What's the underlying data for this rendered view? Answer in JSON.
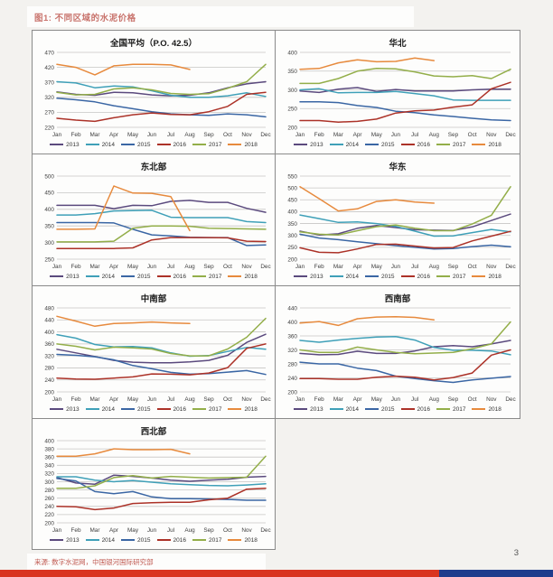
{
  "page": {
    "figure_label": "图1: 不同区域的水泥价格",
    "source_text": "来源: 数字水泥网，中国银河国际研究部",
    "page_number": "3",
    "figure_label_color": "#c9746d",
    "source_text_color": "#c05a52",
    "footer_bar": {
      "red": "#d93420",
      "blue": "#1e3c8c"
    }
  },
  "months": [
    "Jan",
    "Feb",
    "Mar",
    "Apr",
    "May",
    "Jun",
    "Jul",
    "Aug",
    "Sep",
    "Oct",
    "Nov",
    "Dec"
  ],
  "series_colors": {
    "2013": "#5b4a7e",
    "2014": "#3fa0b8",
    "2015": "#3a66a4",
    "2016": "#ac3228",
    "2017": "#93ae49",
    "2018": "#e78a3d"
  },
  "chart_data": [
    {
      "type": "line",
      "title": "全国平均（P.O. 42.5）",
      "ylim": [
        220,
        470
      ],
      "yticks": [
        220,
        270,
        320,
        370,
        420,
        470
      ],
      "series": [
        {
          "name": "2013",
          "values": [
            338,
            330,
            327,
            337,
            335,
            328,
            325,
            327,
            335,
            352,
            365,
            372
          ]
        },
        {
          "name": "2014",
          "values": [
            372,
            368,
            352,
            358,
            355,
            342,
            327,
            320,
            320,
            325,
            335,
            323
          ]
        },
        {
          "name": "2015",
          "values": [
            317,
            312,
            305,
            292,
            282,
            272,
            265,
            262,
            260,
            265,
            262,
            255
          ]
        },
        {
          "name": "2016",
          "values": [
            250,
            244,
            240,
            252,
            262,
            268,
            263,
            262,
            272,
            290,
            330,
            337
          ]
        },
        {
          "name": "2017",
          "values": [
            337,
            328,
            330,
            348,
            352,
            345,
            333,
            330,
            332,
            350,
            372,
            430
          ]
        },
        {
          "name": "2018",
          "values": [
            430,
            420,
            395,
            425,
            430,
            430,
            428,
            413
          ]
        }
      ]
    },
    {
      "type": "line",
      "title": "华北",
      "ylim": [
        200,
        400
      ],
      "yticks": [
        200,
        250,
        300,
        350,
        400
      ],
      "series": [
        {
          "name": "2013",
          "values": [
            297,
            293,
            302,
            306,
            296,
            301,
            297,
            297,
            297,
            300,
            302,
            302
          ]
        },
        {
          "name": "2014",
          "values": [
            300,
            303,
            292,
            293,
            293,
            296,
            290,
            284,
            273,
            272,
            272,
            272
          ]
        },
        {
          "name": "2015",
          "values": [
            268,
            268,
            266,
            258,
            253,
            243,
            239,
            233,
            229,
            224,
            220,
            218
          ]
        },
        {
          "name": "2016",
          "values": [
            218,
            218,
            214,
            216,
            222,
            238,
            244,
            246,
            254,
            260,
            303,
            320
          ]
        },
        {
          "name": "2017",
          "values": [
            317,
            317,
            330,
            350,
            357,
            356,
            348,
            337,
            335,
            338,
            330,
            355
          ]
        },
        {
          "name": "2018",
          "values": [
            355,
            357,
            372,
            380,
            375,
            376,
            385,
            378
          ]
        }
      ]
    },
    {
      "type": "line",
      "title": "东北部",
      "ylim": [
        250,
        500
      ],
      "yticks": [
        250,
        300,
        350,
        400,
        450,
        500
      ],
      "series": [
        {
          "name": "2013",
          "values": [
            412,
            412,
            412,
            402,
            412,
            411,
            424,
            427,
            421,
            421,
            403,
            391
          ]
        },
        {
          "name": "2014",
          "values": [
            383,
            383,
            387,
            395,
            396,
            397,
            376,
            375,
            375,
            375,
            363,
            360
          ]
        },
        {
          "name": "2015",
          "values": [
            360,
            360,
            360,
            359,
            340,
            323,
            320,
            316,
            315,
            315,
            291,
            293
          ]
        },
        {
          "name": "2016",
          "values": [
            282,
            282,
            282,
            282,
            284,
            308,
            315,
            315,
            315,
            314,
            304,
            303
          ]
        },
        {
          "name": "2017",
          "values": [
            302,
            302,
            302,
            304,
            343,
            350,
            350,
            349,
            343,
            342,
            341,
            340
          ]
        },
        {
          "name": "2018",
          "values": [
            340,
            340,
            341,
            470,
            449,
            448,
            438,
            336
          ]
        }
      ]
    },
    {
      "type": "line",
      "title": "华东",
      "ylim": [
        200,
        550
      ],
      "yticks": [
        200,
        250,
        300,
        350,
        400,
        450,
        500,
        550
      ],
      "series": [
        {
          "name": "2013",
          "values": [
            318,
            302,
            307,
            330,
            342,
            333,
            324,
            322,
            321,
            336,
            363,
            390
          ]
        },
        {
          "name": "2014",
          "values": [
            386,
            371,
            355,
            357,
            350,
            338,
            318,
            297,
            298,
            312,
            325,
            315
          ]
        },
        {
          "name": "2015",
          "values": [
            305,
            289,
            282,
            273,
            265,
            257,
            250,
            243,
            245,
            253,
            259,
            252
          ]
        },
        {
          "name": "2016",
          "values": [
            248,
            229,
            227,
            243,
            262,
            263,
            255,
            247,
            249,
            277,
            297,
            317
          ]
        },
        {
          "name": "2017",
          "values": [
            315,
            305,
            302,
            320,
            337,
            344,
            330,
            320,
            320,
            348,
            385,
            505
          ]
        },
        {
          "name": "2018",
          "values": [
            505,
            455,
            403,
            412,
            443,
            450,
            441,
            436
          ]
        }
      ]
    },
    {
      "type": "line",
      "title": "中南部",
      "ylim": [
        200,
        480
      ],
      "yticks": [
        200,
        240,
        280,
        320,
        360,
        400,
        440,
        480
      ],
      "series": [
        {
          "name": "2013",
          "values": [
            342,
            330,
            318,
            305,
            299,
            297,
            297,
            300,
            305,
            322,
            365,
            392
          ]
        },
        {
          "name": "2014",
          "values": [
            391,
            379,
            358,
            350,
            351,
            347,
            330,
            319,
            321,
            335,
            348,
            342
          ]
        },
        {
          "name": "2015",
          "values": [
            325,
            322,
            317,
            307,
            288,
            277,
            265,
            259,
            261,
            266,
            271,
            258
          ]
        },
        {
          "name": "2016",
          "values": [
            246,
            243,
            242,
            246,
            250,
            260,
            259,
            257,
            263,
            281,
            345,
            360
          ]
        },
        {
          "name": "2017",
          "values": [
            360,
            352,
            340,
            349,
            347,
            343,
            328,
            320,
            320,
            343,
            382,
            445
          ]
        },
        {
          "name": "2018",
          "values": [
            452,
            436,
            419,
            428,
            430,
            433,
            430,
            428
          ]
        }
      ]
    },
    {
      "type": "line",
      "title": "西南部",
      "ylim": [
        200,
        440
      ],
      "yticks": [
        200,
        240,
        280,
        320,
        360,
        400,
        440
      ],
      "series": [
        {
          "name": "2013",
          "values": [
            310,
            306,
            307,
            316,
            310,
            310,
            317,
            329,
            332,
            329,
            337,
            347
          ]
        },
        {
          "name": "2014",
          "values": [
            347,
            342,
            348,
            353,
            357,
            358,
            348,
            327,
            319,
            319,
            317,
            306
          ]
        },
        {
          "name": "2015",
          "values": [
            285,
            280,
            280,
            268,
            261,
            245,
            238,
            232,
            227,
            234,
            239,
            244
          ]
        },
        {
          "name": "2016",
          "values": [
            238,
            238,
            236,
            236,
            242,
            245,
            242,
            234,
            241,
            254,
            305,
            320
          ]
        },
        {
          "name": "2017",
          "values": [
            320,
            313,
            313,
            328,
            320,
            313,
            309,
            311,
            313,
            323,
            337,
            400
          ]
        },
        {
          "name": "2018",
          "values": [
            397,
            401,
            390,
            409,
            414,
            415,
            413,
            406
          ]
        }
      ]
    },
    {
      "type": "line",
      "title": "西北部",
      "ylim": [
        200,
        400
      ],
      "yticks": [
        200,
        220,
        240,
        260,
        280,
        300,
        320,
        340,
        360,
        380,
        400
      ],
      "series": [
        {
          "name": "2013",
          "values": [
            310,
            297,
            294,
            316,
            313,
            309,
            304,
            301,
            304,
            306,
            311,
            313
          ]
        },
        {
          "name": "2014",
          "values": [
            312,
            312,
            304,
            300,
            303,
            299,
            295,
            293,
            291,
            290,
            292,
            295
          ]
        },
        {
          "name": "2015",
          "values": [
            308,
            302,
            276,
            271,
            276,
            263,
            259,
            259,
            258,
            257,
            255,
            255
          ]
        },
        {
          "name": "2016",
          "values": [
            240,
            239,
            232,
            236,
            247,
            249,
            250,
            250,
            256,
            260,
            282,
            284
          ]
        },
        {
          "name": "2017",
          "values": [
            284,
            284,
            290,
            310,
            315,
            309,
            313,
            311,
            309,
            310,
            311,
            362
          ]
        },
        {
          "name": "2018",
          "values": [
            362,
            362,
            368,
            380,
            378,
            378,
            379,
            368
          ]
        }
      ]
    }
  ]
}
